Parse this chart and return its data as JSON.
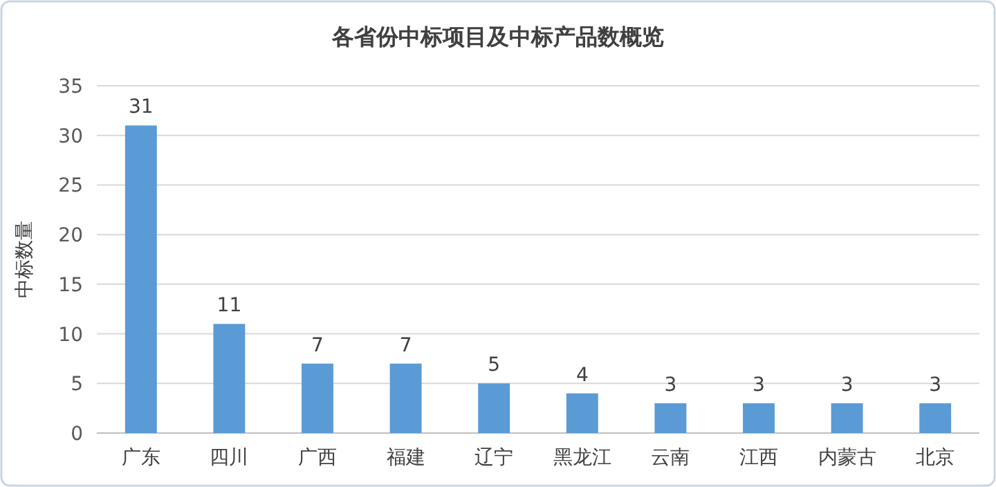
{
  "chart_data": {
    "type": "bar",
    "title": "各省份中标项目及中标产品数概览",
    "ylabel": "中标数量",
    "categories": [
      "广东",
      "四川",
      "广西",
      "福建",
      "辽宁",
      "黑龙江",
      "云南",
      "江西",
      "内蒙古",
      "北京"
    ],
    "values": [
      31,
      11,
      7,
      7,
      5,
      4,
      3,
      3,
      3,
      3
    ],
    "color": "#5b9bd5",
    "ylim": [
      0,
      35
    ],
    "yticks": [
      0,
      5,
      10,
      15,
      20,
      25,
      30,
      35
    ],
    "grid": "y",
    "data_labels": true
  }
}
